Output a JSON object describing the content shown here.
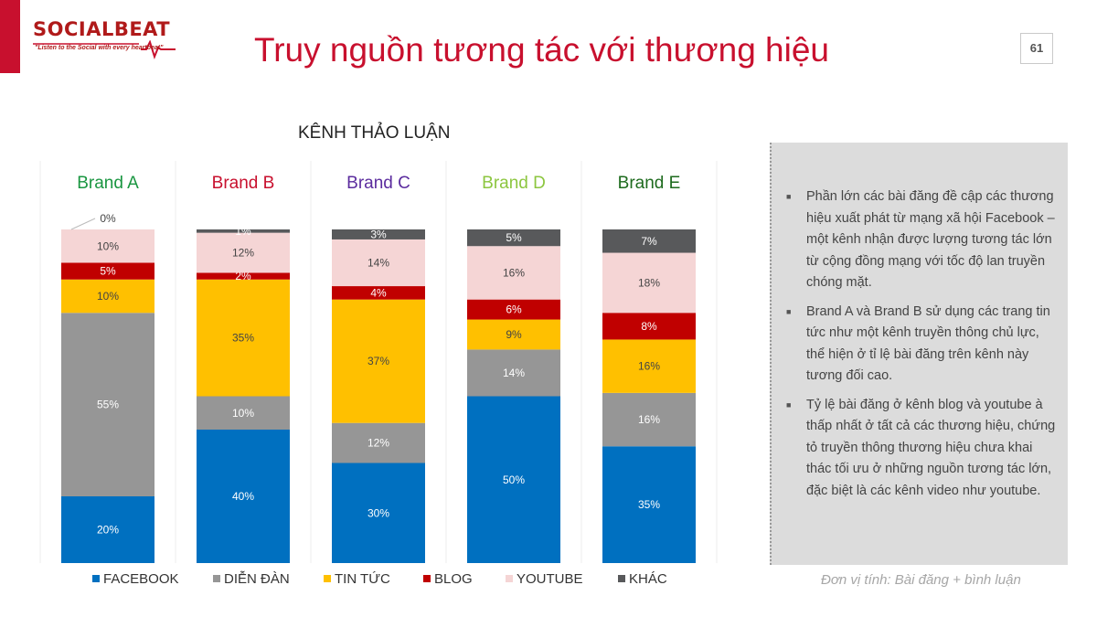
{
  "logo": {
    "name": "SOCIALBEAT",
    "tagline": "\"Listen to the Social with every heartbeat\""
  },
  "header": {
    "title": "Truy nguồn tương tác với thương hiệu",
    "page_number": "61"
  },
  "panel": {
    "bullets": [
      "Phần lớn các bài đăng đề cập các thương hiệu xuất phát từ mạng xã hội Facebook – một kênh nhận được lượng tương tác lớn từ cộng đồng mạng với tốc độ lan truyền chóng mặt.",
      "Brand A và Brand B sử dụng các trang tin tức như một kênh truyền thông chủ lực, thể hiện ở tỉ lệ bài đăng trên kênh này tương đối cao.",
      "Tỷ lệ bài đăng ở kênh blog và youtube à thấp nhất ở tất cả các thương hiệu, chứng tỏ truyền thông thương hiệu chưa khai thác tối ưu ở những nguồn tương tác lớn, đặc biệt là các kênh video như youtube."
    ],
    "unit_note": "Đơn vị tính: Bài đăng + bình luận"
  },
  "colors": {
    "accent": "#c8102e",
    "panel_bg": "#dcdcdc"
  },
  "chart_data": {
    "type": "bar",
    "stacked": true,
    "title": "KÊNH THẢO LUẬN",
    "categories": [
      "Brand A",
      "Brand B",
      "Brand C",
      "Brand D",
      "Brand E"
    ],
    "category_colors": [
      "#1a9641",
      "#c8102e",
      "#5b2c9e",
      "#8cc63f",
      "#1e6b1e"
    ],
    "ylim": [
      0,
      100
    ],
    "legend_position": "bottom",
    "series": [
      {
        "name": "FACEBOOK",
        "color": "#0070c0",
        "values": [
          20,
          40,
          30,
          50,
          35
        ],
        "labels": [
          "20%",
          "40%",
          "30%",
          "50%",
          "35%"
        ]
      },
      {
        "name": "DIỄN ĐÀN",
        "color": "#969696",
        "values": [
          55,
          10,
          12,
          14,
          16
        ],
        "labels": [
          "55%",
          "10%",
          "12%",
          "14%",
          "16%"
        ]
      },
      {
        "name": "TIN TỨC",
        "color": "#ffc000",
        "values": [
          10,
          35,
          37,
          9,
          16
        ],
        "labels": [
          "10%",
          "35%",
          "37%",
          "9%",
          "16%"
        ]
      },
      {
        "name": "BLOG",
        "color": "#c00000",
        "values": [
          5,
          2,
          4,
          6,
          8
        ],
        "labels": [
          "5%",
          "2%",
          "4%",
          "6%",
          "8%"
        ]
      },
      {
        "name": "YOUTUBE",
        "color": "#f5d5d5",
        "values": [
          10,
          12,
          14,
          16,
          18
        ],
        "labels": [
          "10%",
          "12%",
          "14%",
          "16%",
          "18%"
        ]
      },
      {
        "name": "KHÁC",
        "color": "#58595b",
        "values": [
          0,
          1,
          3,
          5,
          7
        ],
        "labels": [
          "0%",
          "1%",
          "3%",
          "5%",
          "7%"
        ]
      }
    ]
  }
}
